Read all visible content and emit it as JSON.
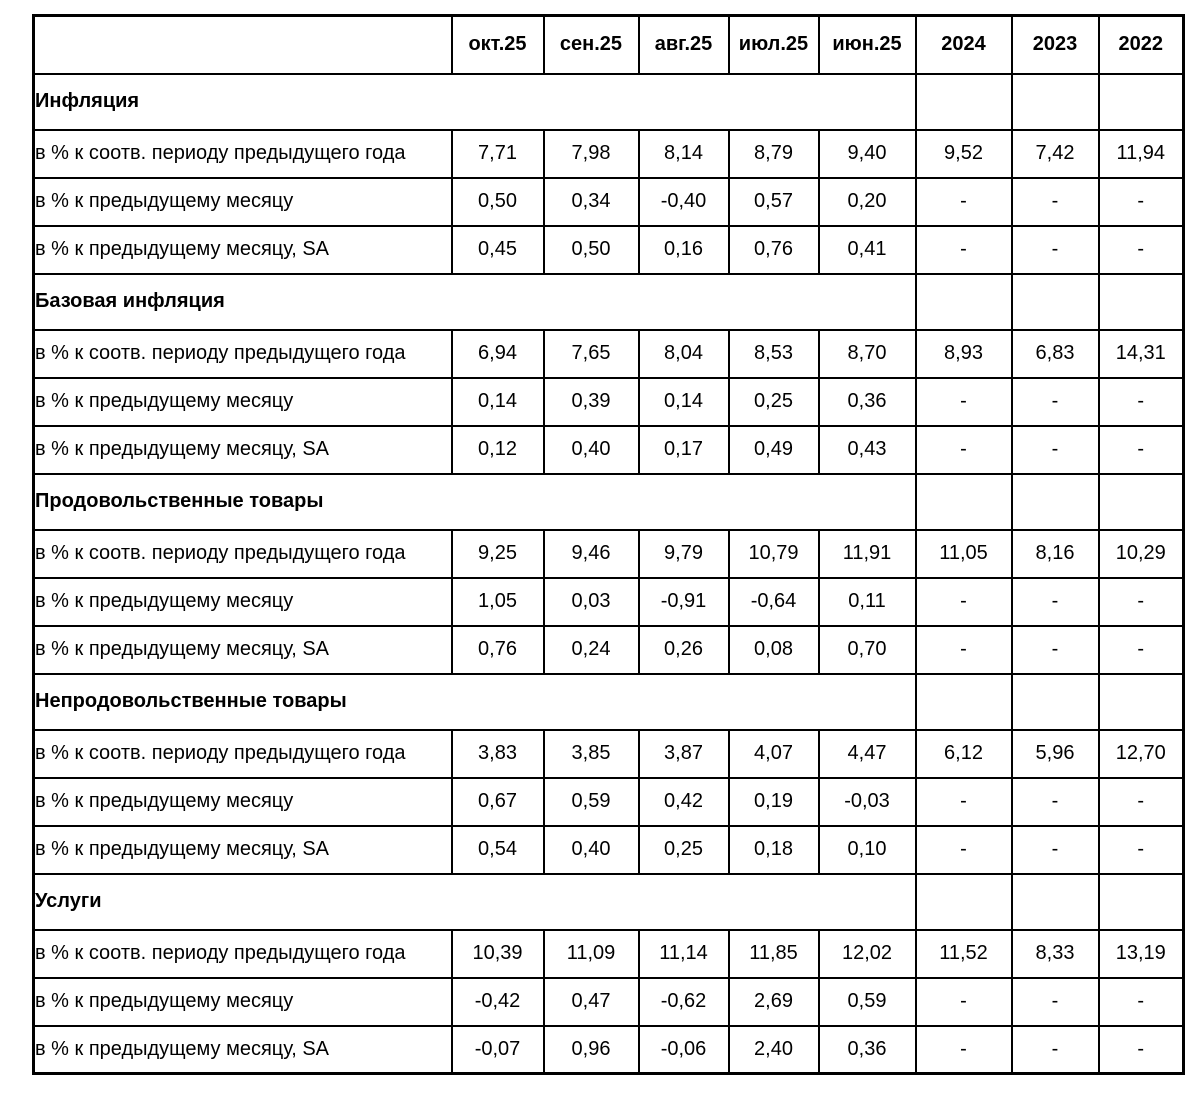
{
  "colors": {
    "background": "#ffffff",
    "border": "#000000",
    "text": "#000000"
  },
  "table": {
    "corner_label": "",
    "columns": [
      "окт.25",
      "сен.25",
      "авг.25",
      "июл.25",
      "июн.25",
      "2024",
      "2023",
      "2022"
    ],
    "row_labels": {
      "yoy": "в % к соотв. периоду предыдущего года",
      "mom": "в % к предыдущему месяцу",
      "mom_sa": "в % к предыдущему месяцу, SA"
    },
    "empty_value": "-",
    "sections": [
      {
        "title": "Инфляция",
        "rows": [
          {
            "label": "в % к соотв. периоду предыдущего года",
            "values": [
              "7,71",
              "7,98",
              "8,14",
              "8,79",
              "9,40",
              "9,52",
              "7,42",
              "11,94"
            ]
          },
          {
            "label": "в % к предыдущему месяцу",
            "values": [
              "0,50",
              "0,34",
              "-0,40",
              "0,57",
              "0,20",
              "-",
              "-",
              "-"
            ]
          },
          {
            "label": "в % к предыдущему месяцу, SA",
            "values": [
              "0,45",
              "0,50",
              "0,16",
              "0,76",
              "0,41",
              "-",
              "-",
              "-"
            ]
          }
        ]
      },
      {
        "title": "Базовая инфляция",
        "rows": [
          {
            "label": "в % к соотв. периоду предыдущего года",
            "values": [
              "6,94",
              "7,65",
              "8,04",
              "8,53",
              "8,70",
              "8,93",
              "6,83",
              "14,31"
            ]
          },
          {
            "label": "в % к предыдущему месяцу",
            "values": [
              "0,14",
              "0,39",
              "0,14",
              "0,25",
              "0,36",
              "-",
              "-",
              "-"
            ]
          },
          {
            "label": "в % к предыдущему месяцу, SA",
            "values": [
              "0,12",
              "0,40",
              "0,17",
              "0,49",
              "0,43",
              "-",
              "-",
              "-"
            ]
          }
        ]
      },
      {
        "title": "Продовольственные товары",
        "rows": [
          {
            "label": "в % к соотв. периоду предыдущего года",
            "values": [
              "9,25",
              "9,46",
              "9,79",
              "10,79",
              "11,91",
              "11,05",
              "8,16",
              "10,29"
            ]
          },
          {
            "label": "в % к предыдущему месяцу",
            "values": [
              "1,05",
              "0,03",
              "-0,91",
              "-0,64",
              "0,11",
              "-",
              "-",
              "-"
            ]
          },
          {
            "label": "в % к предыдущему месяцу, SA",
            "values": [
              "0,76",
              "0,24",
              "0,26",
              "0,08",
              "0,70",
              "-",
              "-",
              "-"
            ]
          }
        ]
      },
      {
        "title": "Непродовольственные товары",
        "rows": [
          {
            "label": "в % к соотв. периоду предыдущего года",
            "values": [
              "3,83",
              "3,85",
              "3,87",
              "4,07",
              "4,47",
              "6,12",
              "5,96",
              "12,70"
            ]
          },
          {
            "label": "в % к предыдущему месяцу",
            "values": [
              "0,67",
              "0,59",
              "0,42",
              "0,19",
              "-0,03",
              "-",
              "-",
              "-"
            ]
          },
          {
            "label": "в % к предыдущему месяцу, SA",
            "values": [
              "0,54",
              "0,40",
              "0,25",
              "0,18",
              "0,10",
              "-",
              "-",
              "-"
            ]
          }
        ]
      },
      {
        "title": "Услуги",
        "rows": [
          {
            "label": "в % к соотв. периоду предыдущего года",
            "values": [
              "10,39",
              "11,09",
              "11,14",
              "11,85",
              "12,02",
              "11,52",
              "8,33",
              "13,19"
            ]
          },
          {
            "label": "в % к предыдущему месяцу",
            "values": [
              "-0,42",
              "0,47",
              "-0,62",
              "2,69",
              "0,59",
              "-",
              "-",
              "-"
            ]
          },
          {
            "label": "в % к предыдущему месяцу, SA",
            "values": [
              "-0,07",
              "0,96",
              "-0,06",
              "2,40",
              "0,36",
              "-",
              "-",
              "-"
            ]
          }
        ]
      }
    ]
  }
}
